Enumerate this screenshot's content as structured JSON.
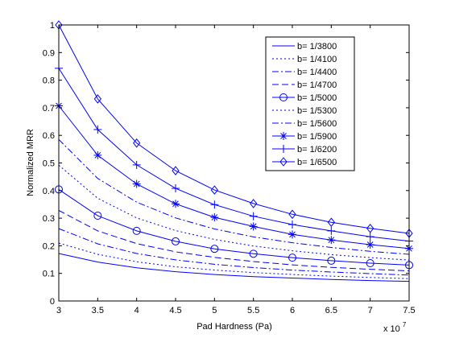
{
  "chart_data": {
    "type": "line",
    "title": "",
    "xlabel": "Pad Hardness (Pa)",
    "ylabel": "Normalized MRR",
    "x_multiplier_label": "x 10",
    "x_multiplier_exponent": "7",
    "xlim": [
      3,
      7.5
    ],
    "ylim": [
      0,
      1
    ],
    "xticks": [
      "3",
      "3.5",
      "4",
      "4.5",
      "5",
      "5.5",
      "6",
      "6.5",
      "7",
      "7.5"
    ],
    "yticks": [
      "0",
      "0.1",
      "0.2",
      "0.3",
      "0.4",
      "0.5",
      "0.6",
      "0.7",
      "0.8",
      "0.9",
      "1"
    ],
    "grid": false,
    "legend_position": "top-right",
    "line_color": "#0000ff",
    "x": [
      3,
      3.5,
      4,
      4.5,
      5,
      5.5,
      6,
      6.5,
      7,
      7.5
    ],
    "series": [
      {
        "name": "b= 1/3800",
        "style": "solid",
        "marker": "none",
        "values": [
          0.172,
          0.141,
          0.12,
          0.106,
          0.096,
          0.088,
          0.083,
          0.078,
          0.074,
          0.071
        ]
      },
      {
        "name": "b= 1/4100",
        "style": "dotted",
        "marker": "none",
        "values": [
          0.21,
          0.169,
          0.142,
          0.124,
          0.112,
          0.103,
          0.096,
          0.09,
          0.085,
          0.081
        ]
      },
      {
        "name": "b= 1/4400",
        "style": "dashdot",
        "marker": "none",
        "values": [
          0.262,
          0.207,
          0.172,
          0.149,
          0.133,
          0.121,
          0.112,
          0.105,
          0.099,
          0.094
        ]
      },
      {
        "name": "b= 1/4700",
        "style": "dashed",
        "marker": "none",
        "values": [
          0.328,
          0.254,
          0.208,
          0.178,
          0.158,
          0.143,
          0.131,
          0.122,
          0.115,
          0.109
        ]
      },
      {
        "name": "b= 1/5000",
        "style": "solid",
        "marker": "circle",
        "values": [
          0.404,
          0.309,
          0.254,
          0.216,
          0.189,
          0.171,
          0.157,
          0.146,
          0.137,
          0.13
        ]
      },
      {
        "name": "b= 1/5300",
        "style": "dotted",
        "marker": "none",
        "values": [
          0.492,
          0.372,
          0.301,
          0.255,
          0.223,
          0.199,
          0.182,
          0.168,
          0.157,
          0.148
        ]
      },
      {
        "name": "b= 1/5600",
        "style": "dashdot",
        "marker": "none",
        "values": [
          0.585,
          0.444,
          0.358,
          0.301,
          0.261,
          0.232,
          0.211,
          0.194,
          0.18,
          0.169
        ]
      },
      {
        "name": "b= 1/5900",
        "style": "solid",
        "marker": "star",
        "values": [
          0.707,
          0.528,
          0.424,
          0.352,
          0.303,
          0.27,
          0.241,
          0.221,
          0.204,
          0.19
        ]
      },
      {
        "name": "b= 1/6200",
        "style": "solid",
        "marker": "plus",
        "values": [
          0.843,
          0.621,
          0.493,
          0.408,
          0.349,
          0.307,
          0.277,
          0.254,
          0.233,
          0.217
        ]
      },
      {
        "name": "b= 1/6500",
        "style": "solid",
        "marker": "diamond",
        "values": [
          1.0,
          0.732,
          0.572,
          0.472,
          0.402,
          0.353,
          0.314,
          0.285,
          0.263,
          0.245
        ]
      }
    ]
  }
}
